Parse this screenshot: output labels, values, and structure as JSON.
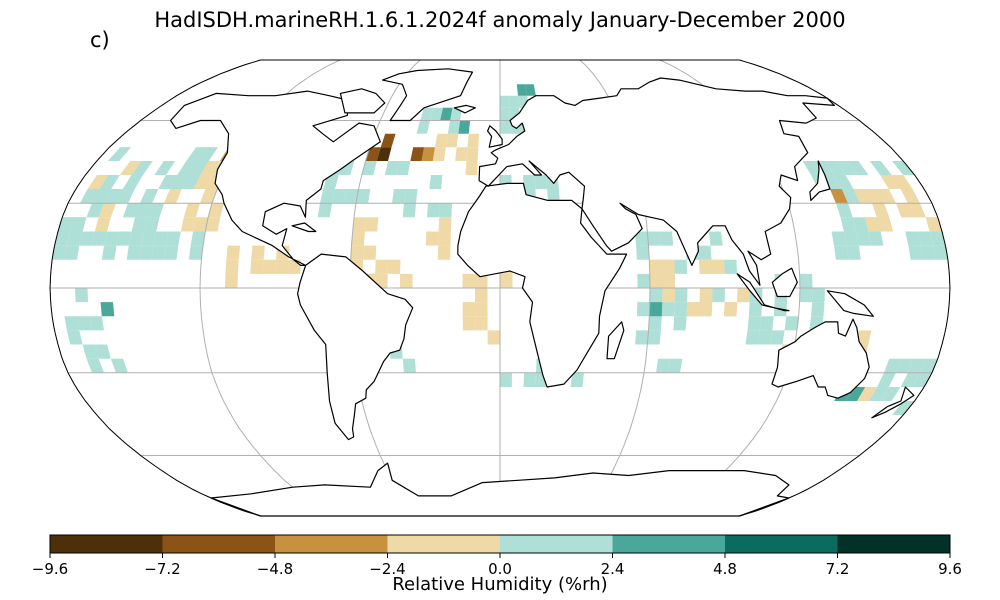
{
  "figure": {
    "title": "HadISDH.marineRH.1.6.1.2024f anomaly January-December 2000",
    "panel_label": "c)"
  },
  "map": {
    "projection": "Robinson",
    "graticule_lon_step_deg": 60,
    "graticule_lat_step_deg": 30,
    "gridline_color": "#b0b0b0",
    "coastline_color": "#000000",
    "land_fill": "#ffffff"
  },
  "colorbar": {
    "label": "Relative Humidity (%rh)",
    "range": [
      -9.6,
      9.6
    ],
    "ticks": [
      "−9.6",
      "−7.2",
      "−4.8",
      "−2.4",
      "0.0",
      "2.4",
      "4.8",
      "7.2",
      "9.6"
    ],
    "colors": [
      "#4d2f0a",
      "#8b5416",
      "#c8913f",
      "#efd9a6",
      "#afe0d8",
      "#4aa89b",
      "#0a6c5f",
      "#013228"
    ]
  }
}
